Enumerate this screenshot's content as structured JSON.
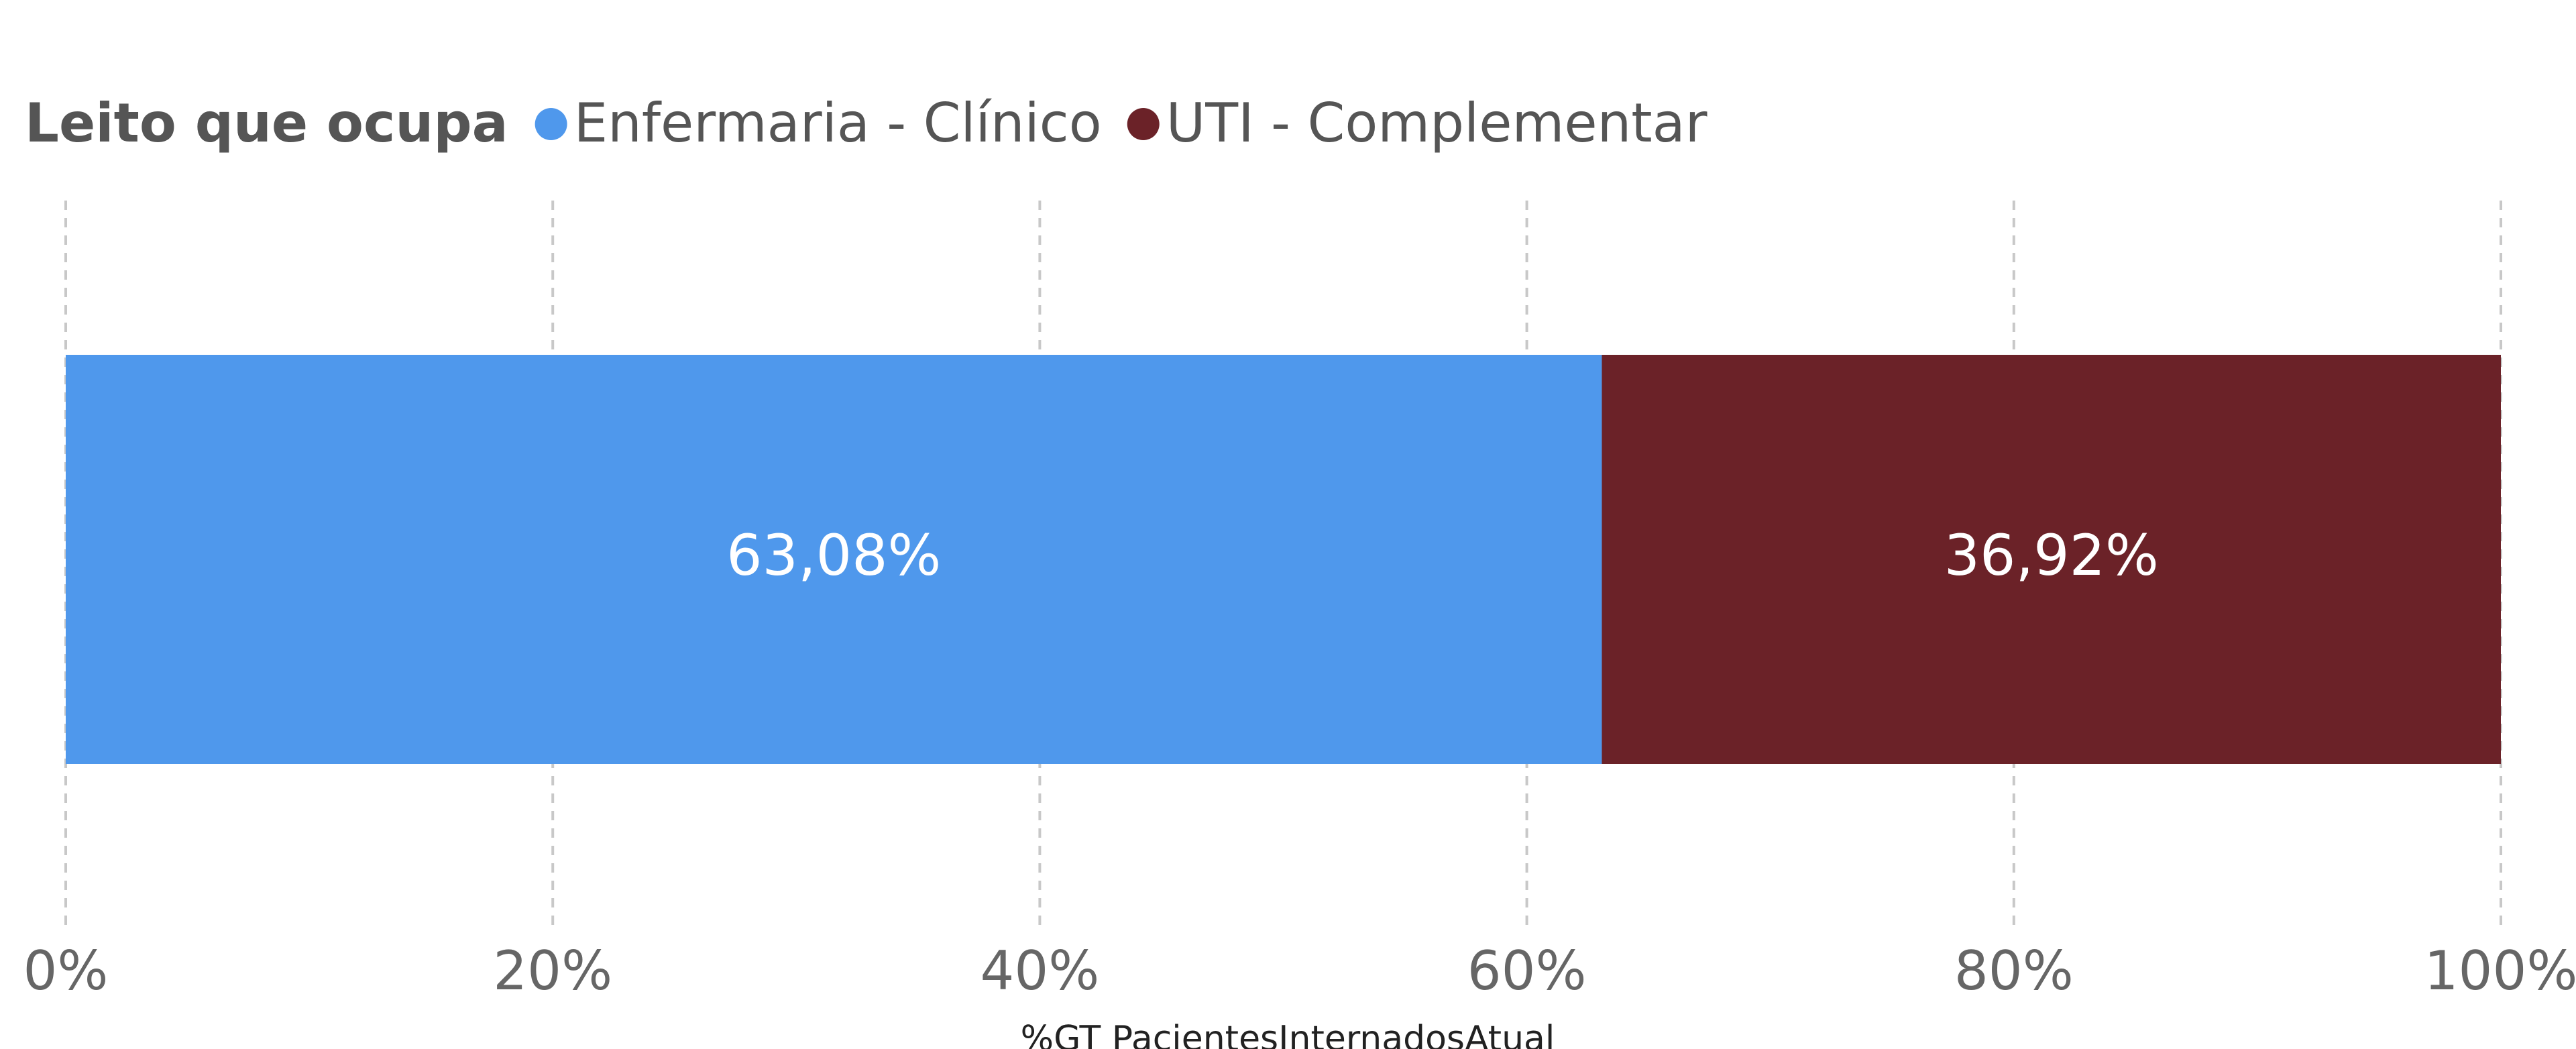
{
  "chart_data": {
    "type": "stacked_bar_horizontal",
    "legend_title": "Leito que ocupa",
    "categories": [
      null
    ],
    "series": [
      {
        "name": "Enfermaria - Clínico",
        "color": "#4f98ec",
        "values": [
          63.08
        ],
        "value_labels": [
          "63,08%"
        ]
      },
      {
        "name": "UTI - Complementar",
        "color": "#6b2228",
        "values": [
          36.92
        ],
        "value_labels": [
          "36,92%"
        ]
      }
    ],
    "xlim": [
      0,
      100
    ],
    "xticks": [
      {
        "value": 0,
        "label": "0%"
      },
      {
        "value": 20,
        "label": "20%"
      },
      {
        "value": 40,
        "label": "40%"
      },
      {
        "value": 60,
        "label": "60%"
      },
      {
        "value": 80,
        "label": "80%"
      },
      {
        "value": 100,
        "label": "100%"
      }
    ],
    "xlabel": "%GT PacientesInternadosAtual",
    "grid": true
  }
}
